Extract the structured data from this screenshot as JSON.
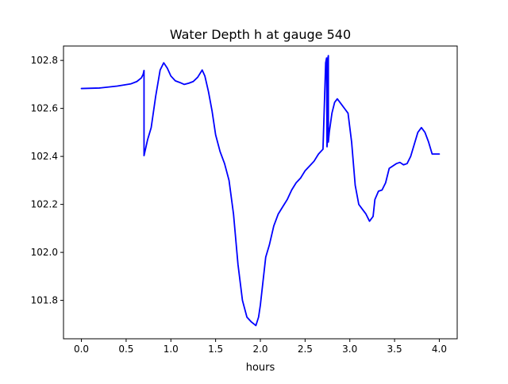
{
  "chart_data": {
    "type": "line",
    "title": "Water Depth h at gauge 540",
    "xlabel": "hours",
    "ylabel": "",
    "xlim": [
      -0.2,
      4.2
    ],
    "ylim": [
      101.64,
      102.86
    ],
    "xticks": [
      0.0,
      0.5,
      1.0,
      1.5,
      2.0,
      2.5,
      3.0,
      3.5,
      4.0
    ],
    "xtick_labels": [
      "0.0",
      "0.5",
      "1.0",
      "1.5",
      "2.0",
      "2.5",
      "3.0",
      "3.5",
      "4.0"
    ],
    "yticks": [
      101.8,
      102.0,
      102.2,
      102.4,
      102.6,
      102.8
    ],
    "ytick_labels": [
      "101.8",
      "102.0",
      "102.2",
      "102.4",
      "102.6",
      "102.8"
    ],
    "grid": false,
    "series": [
      {
        "color": "#0000ff",
        "x": [
          0.0,
          0.2,
          0.4,
          0.55,
          0.62,
          0.67,
          0.69,
          0.7,
          0.7,
          0.74,
          0.78,
          0.83,
          0.88,
          0.92,
          0.96,
          1.0,
          1.05,
          1.1,
          1.15,
          1.2,
          1.25,
          1.3,
          1.35,
          1.38,
          1.42,
          1.46,
          1.5,
          1.55,
          1.6,
          1.65,
          1.7,
          1.75,
          1.8,
          1.85,
          1.9,
          1.95,
          1.98,
          2.0,
          2.03,
          2.06,
          2.1,
          2.15,
          2.2,
          2.25,
          2.3,
          2.35,
          2.4,
          2.45,
          2.5,
          2.55,
          2.6,
          2.65,
          2.7,
          2.73,
          2.74,
          2.745,
          2.75,
          2.755,
          2.76,
          2.76,
          2.77,
          2.8,
          2.83,
          2.86,
          2.9,
          2.94,
          2.98,
          3.02,
          3.06,
          3.1,
          3.14,
          3.18,
          3.22,
          3.26,
          3.28,
          3.32,
          3.36,
          3.4,
          3.44,
          3.48,
          3.52,
          3.56,
          3.6,
          3.64,
          3.68,
          3.72,
          3.76,
          3.8,
          3.84,
          3.88,
          3.92,
          3.96,
          4.0
        ],
        "y": [
          102.683,
          102.685,
          102.693,
          102.702,
          102.712,
          102.727,
          102.742,
          102.758,
          102.403,
          102.47,
          102.52,
          102.65,
          102.76,
          102.79,
          102.768,
          102.735,
          102.715,
          102.708,
          102.7,
          102.705,
          102.712,
          102.73,
          102.76,
          102.735,
          102.67,
          102.59,
          102.49,
          102.42,
          102.37,
          102.3,
          102.16,
          101.95,
          101.8,
          101.73,
          101.71,
          101.695,
          101.73,
          101.78,
          101.88,
          101.98,
          102.03,
          102.11,
          102.16,
          102.19,
          102.22,
          102.26,
          102.29,
          102.31,
          102.34,
          102.36,
          102.38,
          102.41,
          102.43,
          102.79,
          102.81,
          102.44,
          102.47,
          102.81,
          102.82,
          102.46,
          102.5,
          102.58,
          102.625,
          102.64,
          102.62,
          102.6,
          102.58,
          102.46,
          102.28,
          102.2,
          102.18,
          102.16,
          102.13,
          102.15,
          102.22,
          102.255,
          102.26,
          102.29,
          102.35,
          102.36,
          102.37,
          102.375,
          102.365,
          102.37,
          102.4,
          102.45,
          102.5,
          102.52,
          102.5,
          102.46,
          102.41,
          102.41,
          102.41
        ]
      }
    ]
  }
}
